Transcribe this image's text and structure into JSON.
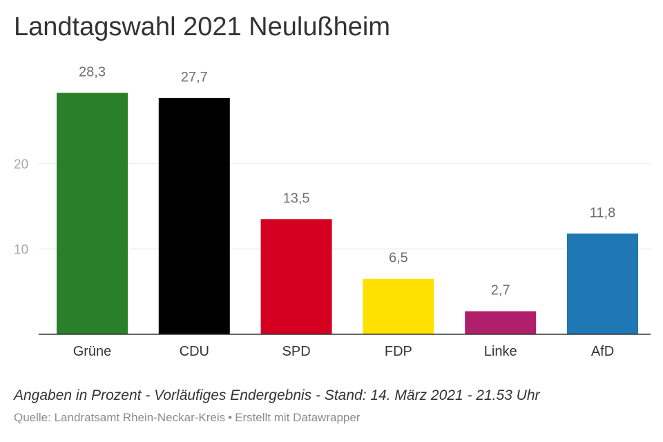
{
  "chart_data": {
    "type": "bar",
    "title": "Landtagswahl 2021 Neulußheim",
    "categories": [
      "Grüne",
      "CDU",
      "SPD",
      "FDP",
      "Linke",
      "AfD"
    ],
    "values": [
      28.3,
      27.7,
      13.5,
      6.5,
      2.7,
      11.8
    ],
    "value_labels": [
      "28,3",
      "27,7",
      "13,5",
      "6,5",
      "2,7",
      "11,8"
    ],
    "colors": [
      "#2a7f2a",
      "#000000",
      "#d50021",
      "#ffe100",
      "#af1f6b",
      "#1f77b4"
    ],
    "yticks": [
      10,
      20
    ],
    "ylim": [
      0,
      32
    ],
    "grid": true,
    "xlabel": "",
    "ylabel": ""
  },
  "footer": {
    "note": "Angaben in Prozent - Vorläufiges Endergebnis - Stand: 14. März 2021 - 21.53 Uhr",
    "source": "Quelle: Landratsamt Rhein-Neckar-Kreis",
    "separator": "•",
    "credit": "Erstellt mit Datawrapper"
  }
}
